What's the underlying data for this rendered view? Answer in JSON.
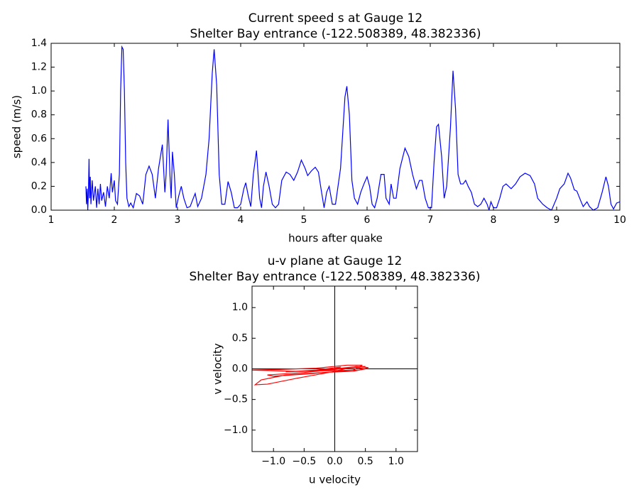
{
  "chart_data": [
    {
      "type": "line",
      "title": [
        "Current speed s at Gauge 12",
        "Shelter Bay entrance  (-122.508389, 48.382336)"
      ],
      "xlabel": "hours after quake",
      "ylabel": "speed (m/s)",
      "color": "blue",
      "xlim": [
        1,
        10
      ],
      "ylim": [
        0,
        1.4
      ],
      "xticks": [
        1,
        2,
        3,
        4,
        5,
        6,
        7,
        8,
        9,
        10
      ],
      "yticks": [
        {
          "value": 0,
          "label": "0.0"
        },
        0.2,
        0.4,
        0.6,
        0.8,
        {
          "value": 1,
          "label": "1.0"
        },
        1.2,
        1.4
      ],
      "x": [
        1.55,
        1.56,
        1.57,
        1.58,
        1.59,
        1.6,
        1.61,
        1.62,
        1.63,
        1.65,
        1.67,
        1.7,
        1.72,
        1.74,
        1.76,
        1.78,
        1.8,
        1.83,
        1.86,
        1.89,
        1.92,
        1.95,
        1.97,
        2.0,
        2.02,
        2.05,
        2.08,
        2.1,
        2.12,
        2.14,
        2.16,
        2.18,
        2.2,
        2.23,
        2.26,
        2.3,
        2.35,
        2.4,
        2.45,
        2.5,
        2.55,
        2.6,
        2.65,
        2.7,
        2.76,
        2.8,
        2.82,
        2.85,
        2.88,
        2.9,
        2.92,
        2.95,
        2.98,
        3.02,
        3.06,
        3.1,
        3.15,
        3.2,
        3.25,
        3.28,
        3.32,
        3.38,
        3.45,
        3.5,
        3.55,
        3.58,
        3.62,
        3.66,
        3.7,
        3.75,
        3.8,
        3.85,
        3.9,
        3.95,
        4.0,
        4.05,
        4.08,
        4.12,
        4.16,
        4.2,
        4.25,
        4.3,
        4.33,
        4.36,
        4.4,
        4.45,
        4.5,
        4.55,
        4.6,
        4.65,
        4.72,
        4.78,
        4.84,
        4.9,
        4.96,
        5.02,
        5.06,
        5.12,
        5.18,
        5.23,
        5.28,
        5.32,
        5.36,
        5.4,
        5.45,
        5.5,
        5.58,
        5.65,
        5.68,
        5.72,
        5.76,
        5.8,
        5.85,
        5.9,
        5.95,
        6.0,
        6.04,
        6.08,
        6.12,
        6.16,
        6.22,
        6.27,
        6.3,
        6.35,
        6.38,
        6.42,
        6.46,
        6.52,
        6.6,
        6.66,
        6.72,
        6.78,
        6.83,
        6.87,
        6.92,
        6.97,
        7.02,
        7.06,
        7.1,
        7.13,
        7.18,
        7.22,
        7.26,
        7.32,
        7.36,
        7.4,
        7.44,
        7.48,
        7.52,
        7.56,
        7.6,
        7.65,
        7.7,
        7.75,
        7.8,
        7.85,
        7.9,
        7.93,
        7.96,
        8.0,
        8.05,
        8.1,
        8.15,
        8.2,
        8.28,
        8.35,
        8.42,
        8.5,
        8.58,
        8.65,
        8.7,
        8.78,
        8.85,
        8.92,
        9.0,
        9.05,
        9.12,
        9.18,
        9.22,
        9.28,
        9.32,
        9.38,
        9.42,
        9.48,
        9.52,
        9.58,
        9.65,
        9.72,
        9.78,
        9.82,
        9.86,
        9.9,
        9.95,
        10.0
      ],
      "values": [
        0.2,
        0.05,
        0.18,
        0.0,
        0.15,
        0.43,
        0.1,
        0.28,
        0.05,
        0.25,
        0.08,
        0.2,
        0.02,
        0.18,
        0.05,
        0.22,
        0.08,
        0.15,
        0.03,
        0.2,
        0.1,
        0.31,
        0.15,
        0.25,
        0.08,
        0.05,
        0.3,
        1.0,
        1.37,
        1.35,
        1.0,
        0.4,
        0.1,
        0.03,
        0.06,
        0.02,
        0.14,
        0.12,
        0.05,
        0.3,
        0.37,
        0.3,
        0.1,
        0.35,
        0.55,
        0.15,
        0.3,
        0.76,
        0.3,
        0.1,
        0.49,
        0.3,
        0.02,
        0.12,
        0.2,
        0.1,
        0.02,
        0.03,
        0.1,
        0.14,
        0.03,
        0.1,
        0.3,
        0.6,
        1.15,
        1.35,
        1.05,
        0.3,
        0.05,
        0.05,
        0.24,
        0.15,
        0.02,
        0.02,
        0.05,
        0.18,
        0.23,
        0.12,
        0.03,
        0.3,
        0.5,
        0.1,
        0.02,
        0.2,
        0.32,
        0.2,
        0.05,
        0.02,
        0.05,
        0.25,
        0.32,
        0.3,
        0.25,
        0.32,
        0.42,
        0.35,
        0.29,
        0.33,
        0.36,
        0.32,
        0.15,
        0.02,
        0.15,
        0.2,
        0.05,
        0.05,
        0.35,
        0.95,
        1.04,
        0.8,
        0.25,
        0.1,
        0.05,
        0.15,
        0.22,
        0.28,
        0.2,
        0.05,
        0.02,
        0.1,
        0.3,
        0.3,
        0.1,
        0.05,
        0.22,
        0.1,
        0.1,
        0.35,
        0.52,
        0.45,
        0.3,
        0.18,
        0.25,
        0.25,
        0.1,
        0.02,
        0.02,
        0.4,
        0.7,
        0.72,
        0.45,
        0.1,
        0.2,
        0.7,
        1.17,
        0.85,
        0.3,
        0.22,
        0.22,
        0.25,
        0.2,
        0.15,
        0.05,
        0.03,
        0.05,
        0.1,
        0.05,
        0.0,
        0.07,
        0.02,
        0.02,
        0.1,
        0.2,
        0.22,
        0.18,
        0.22,
        0.28,
        0.31,
        0.29,
        0.22,
        0.1,
        0.05,
        0.02,
        0.0,
        0.1,
        0.18,
        0.22,
        0.31,
        0.27,
        0.17,
        0.16,
        0.08,
        0.03,
        0.07,
        0.03,
        0.0,
        0.02,
        0.15,
        0.28,
        0.2,
        0.05,
        0.01,
        0.06,
        0.07
      ]
    },
    {
      "type": "line",
      "title": [
        "u-v plane at Gauge 12",
        "Shelter Bay entrance  (-122.508389, 48.382336)"
      ],
      "xlabel": "u velocity",
      "ylabel": "v velocity",
      "color": "red",
      "xlim": [
        -1.35,
        1.35
      ],
      "ylim": [
        -1.35,
        1.35
      ],
      "xticks": [
        {
          "value": -1,
          "label": "−1.0"
        },
        {
          "value": -0.5,
          "label": "−0.5"
        },
        {
          "value": 0,
          "label": "0.0"
        },
        0.5,
        {
          "value": 1,
          "label": "1.0"
        }
      ],
      "yticks": [
        {
          "value": -1,
          "label": "−1.0"
        },
        {
          "value": -0.5,
          "label": "−0.5"
        },
        {
          "value": 0,
          "label": "0.0"
        },
        0.5,
        {
          "value": 1,
          "label": "1.0"
        }
      ],
      "x": [
        0,
        0.3,
        0.5,
        0.3,
        -0.2,
        -0.8,
        -1.2,
        -1.3,
        -1.1,
        -0.6,
        -0.1,
        0.35,
        0.55,
        0.4,
        -0.1,
        -0.7,
        -1.35,
        -0.9,
        -0.3,
        0.2,
        0.45,
        0.3,
        -0.4,
        -1.0,
        -1.1,
        -0.5,
        0.1,
        0.5,
        0.2,
        -0.3,
        -0.8,
        -0.3,
        0.1,
        0.0
      ],
      "values": [
        0,
        0.03,
        0.0,
        -0.04,
        -0.06,
        -0.1,
        -0.18,
        -0.26,
        -0.25,
        -0.15,
        -0.06,
        0.04,
        0.02,
        -0.02,
        -0.03,
        -0.04,
        -0.02,
        -0.01,
        0.01,
        0.06,
        0.06,
        -0.02,
        -0.08,
        -0.12,
        -0.1,
        -0.06,
        0.0,
        0.04,
        0.02,
        -0.03,
        -0.05,
        -0.02,
        0.03,
        0.0
      ]
    }
  ]
}
